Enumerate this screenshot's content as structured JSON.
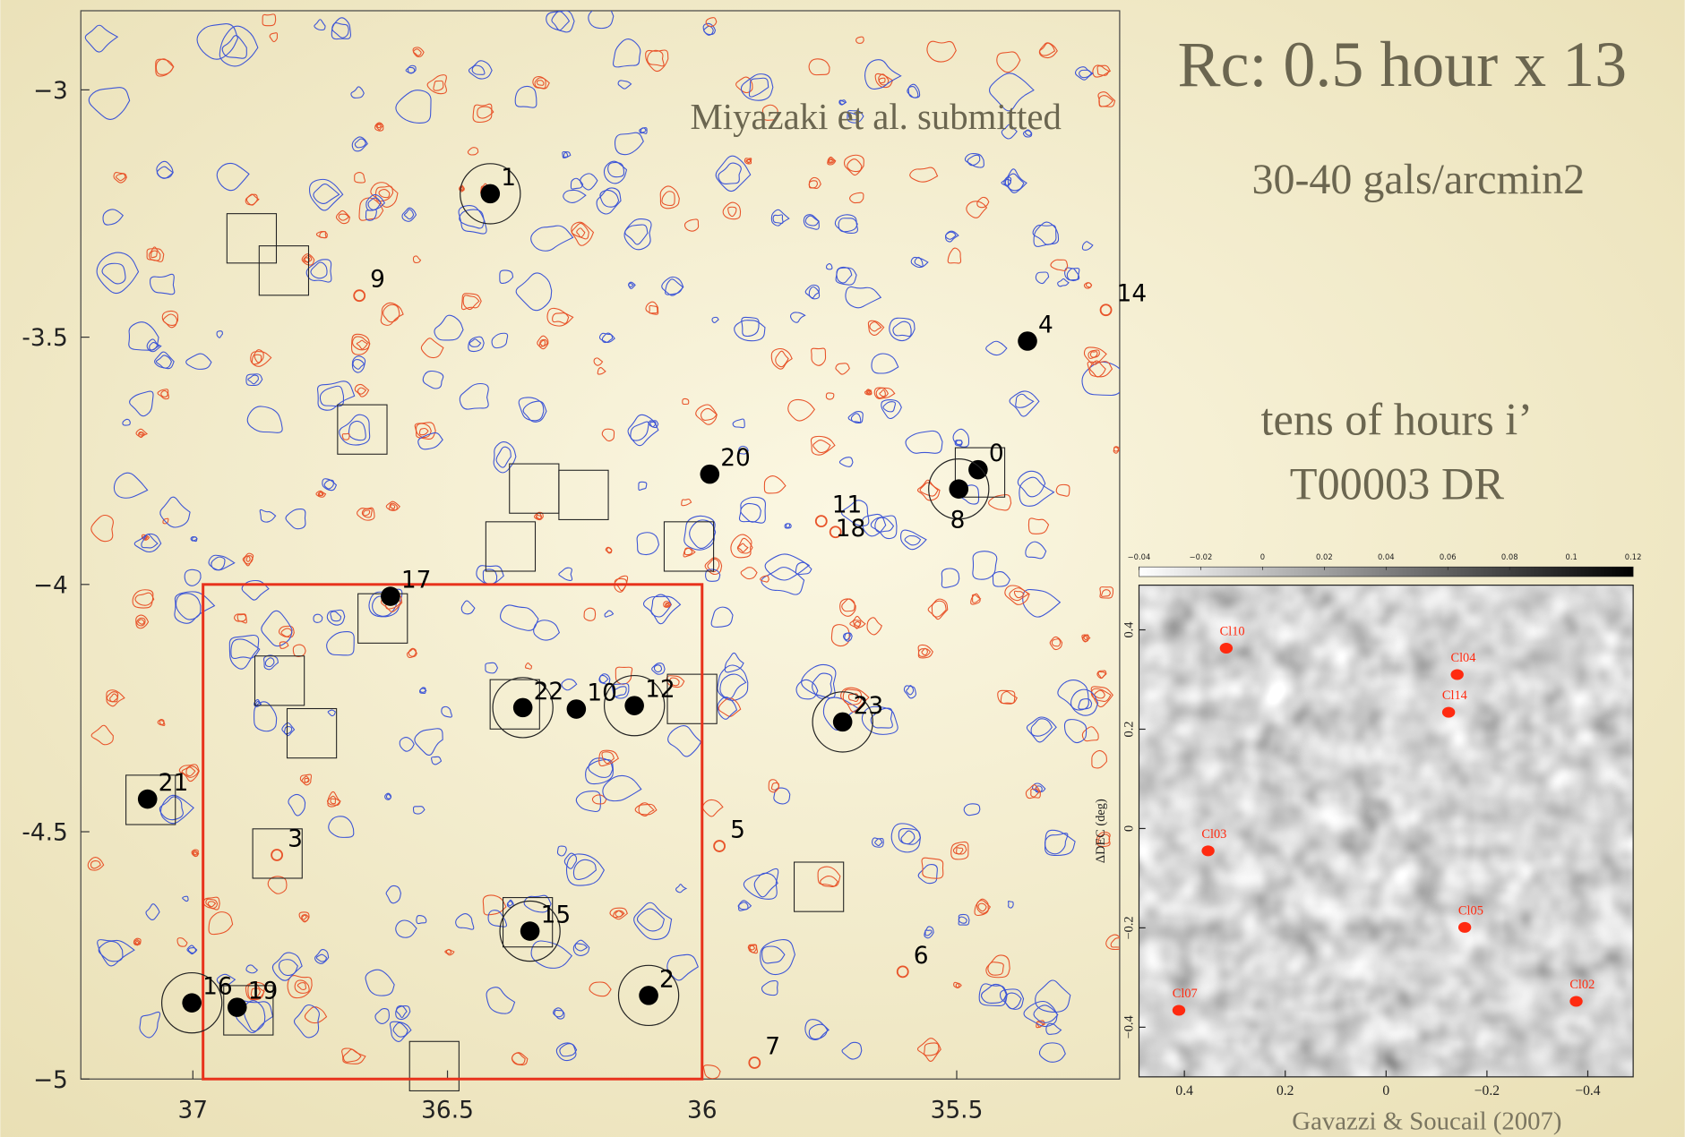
{
  "slide": {
    "title": "Rc: 0.5 hour x 13",
    "subtitle": "30-40 gals/arcmin2",
    "note_line1": "tens of hours  i’",
    "note_line2": "T00003 DR",
    "credit": "Gavazzi & Soucail (2007)"
  },
  "chart_data": [
    {
      "type": "scatter",
      "annotation": "Miyazaki et al. submitted",
      "xlim": [
        37.22,
        35.18
      ],
      "ylim": [
        -5.0,
        -2.84
      ],
      "xticks": [
        37,
        36.5,
        36,
        35.5
      ],
      "yticks": [
        {
          "value": -3,
          "label": "−3"
        },
        {
          "value": -3.5,
          "label": "-3.5"
        },
        {
          "value": -4,
          "label": "−4"
        },
        {
          "value": -4.5,
          "label": "-4.5"
        },
        {
          "value": -5,
          "label": "−5"
        }
      ],
      "region": {
        "x": [
          36.98,
          36.0
        ],
        "y": [
          -4.0,
          -5.0
        ],
        "color": "#e8321c"
      },
      "points": [
        {
          "label": "0",
          "x": 35.458,
          "y": -3.768,
          "dot": true,
          "circle": false
        },
        {
          "label": "1",
          "x": 36.416,
          "y": -3.21,
          "dot": true,
          "circle": true
        },
        {
          "label": "2",
          "x": 36.105,
          "y": -4.831,
          "dot": true,
          "circle": true
        },
        {
          "label": "3",
          "x": 36.835,
          "y": -4.547,
          "dot": false,
          "circle": false
        },
        {
          "label": "4",
          "x": 35.361,
          "y": -3.508,
          "dot": true,
          "circle": false
        },
        {
          "label": "5",
          "x": 35.966,
          "y": -4.529,
          "dot": false,
          "circle": false
        },
        {
          "label": "6",
          "x": 35.606,
          "y": -4.783,
          "dot": false,
          "circle": false
        },
        {
          "label": "7",
          "x": 35.897,
          "y": -4.967,
          "dot": false,
          "circle": false
        },
        {
          "label": "8",
          "x": 35.496,
          "y": -3.807,
          "dot": true,
          "circle": true
        },
        {
          "label": "9",
          "x": 36.673,
          "y": -3.416,
          "dot": false,
          "circle": false
        },
        {
          "label": "10",
          "x": 36.247,
          "y": -4.252,
          "dot": true,
          "circle": false
        },
        {
          "label": "11",
          "x": 35.766,
          "y": -3.872,
          "dot": false,
          "circle": false
        },
        {
          "label": "12",
          "x": 36.133,
          "y": -4.245,
          "dot": true,
          "circle": true
        },
        {
          "label": "14",
          "x": 35.207,
          "y": -3.445,
          "dot": false,
          "circle": false
        },
        {
          "label": "15",
          "x": 36.338,
          "y": -4.701,
          "dot": true,
          "circle": true
        },
        {
          "label": "16",
          "x": 37.002,
          "y": -4.846,
          "dot": true,
          "circle": true
        },
        {
          "label": "17",
          "x": 36.612,
          "y": -4.024,
          "dot": true,
          "circle": false
        },
        {
          "label": "18",
          "x": 35.738,
          "y": -3.894,
          "dot": false,
          "circle": false
        },
        {
          "label": "19",
          "x": 36.913,
          "y": -4.855,
          "dot": true,
          "circle": false
        },
        {
          "label": "20",
          "x": 35.985,
          "y": -3.777,
          "dot": true,
          "circle": false
        },
        {
          "label": "21",
          "x": 37.089,
          "y": -4.434,
          "dot": true,
          "circle": false
        },
        {
          "label": "22",
          "x": 36.352,
          "y": -4.249,
          "dot": true,
          "circle": true
        },
        {
          "label": "23",
          "x": 35.724,
          "y": -4.278,
          "dot": true,
          "circle": true
        }
      ]
    },
    {
      "type": "image",
      "ylabel": "ΔDEC (deg)",
      "color": "#ff2a10",
      "xlim": [
        0.49,
        -0.49
      ],
      "ylim": [
        -0.5,
        0.49
      ],
      "xticks": [
        0.4,
        0.2,
        0,
        {
          "value": -0.2,
          "label": "−0.2"
        },
        {
          "value": -0.4,
          "label": "−0.4"
        }
      ],
      "yticks": [
        {
          "value": -0.4,
          "label": "−0.4"
        },
        {
          "value": -0.2,
          "label": "−0.2"
        },
        0,
        0.2,
        0.4
      ],
      "colorbar_lim": [
        -0.04,
        0.12
      ],
      "colorbar_ticks": [
        {
          "value": -0.04,
          "label": "−0.04"
        },
        {
          "value": -0.02,
          "label": "−0.02"
        },
        0,
        0.02,
        0.04,
        0.06,
        0.08,
        0.1,
        0.12
      ],
      "points": [
        {
          "label": "Cl10",
          "x": 0.317,
          "y": 0.363
        },
        {
          "label": "Cl04",
          "x": -0.141,
          "y": 0.31
        },
        {
          "label": "Cl14",
          "x": -0.124,
          "y": 0.234
        },
        {
          "label": "Cl03",
          "x": 0.353,
          "y": -0.045
        },
        {
          "label": "Cl05",
          "x": -0.156,
          "y": -0.199
        },
        {
          "label": "Cl07",
          "x": 0.411,
          "y": -0.366
        },
        {
          "label": "Cl02",
          "x": -0.377,
          "y": -0.348
        }
      ]
    }
  ]
}
